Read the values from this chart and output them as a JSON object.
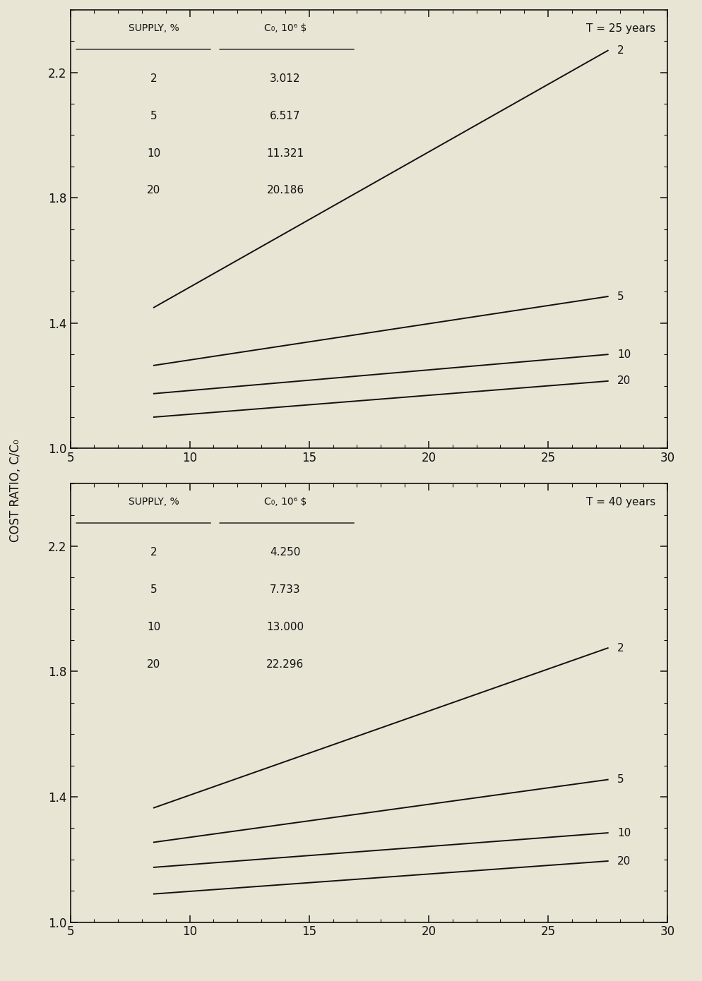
{
  "top_panel": {
    "title_text": "T = 25 years",
    "supply_labels": [
      2,
      5,
      10,
      20
    ],
    "supply_c0": [
      "3.012",
      "6.517",
      "11.321",
      "20.186"
    ],
    "x_start": 8.5,
    "x_end": 27.5,
    "curves": {
      "2": [
        1.45,
        2.27
      ],
      "5": [
        1.265,
        1.485
      ],
      "10": [
        1.175,
        1.3
      ],
      "20": [
        1.1,
        1.215
      ]
    }
  },
  "bottom_panel": {
    "title_text": "T = 40 years",
    "supply_labels": [
      2,
      5,
      10,
      20
    ],
    "supply_c0": [
      "4.250",
      "7.733",
      "13.000",
      "22.296"
    ],
    "x_start": 8.5,
    "x_end": 27.5,
    "curves": {
      "2": [
        1.365,
        1.875
      ],
      "5": [
        1.255,
        1.455
      ],
      "10": [
        1.175,
        1.285
      ],
      "20": [
        1.09,
        1.195
      ]
    }
  },
  "xlim": [
    5,
    30
  ],
  "xticks": [
    5,
    10,
    15,
    20,
    25,
    30
  ],
  "ylim": [
    1.0,
    2.4
  ],
  "yticks": [
    1.0,
    1.4,
    1.8,
    2.2
  ],
  "ytick_labels": [
    "1.0",
    "1.4",
    "1.8",
    "2.2"
  ],
  "ylabel": "COST RATIO, C/C₀",
  "bg_color": "#e8e5d5",
  "line_color": "#111111",
  "text_color": "#111111",
  "table_col1_header": "SUPPLY, %",
  "table_col2_header": "C₀, 10⁶ $"
}
